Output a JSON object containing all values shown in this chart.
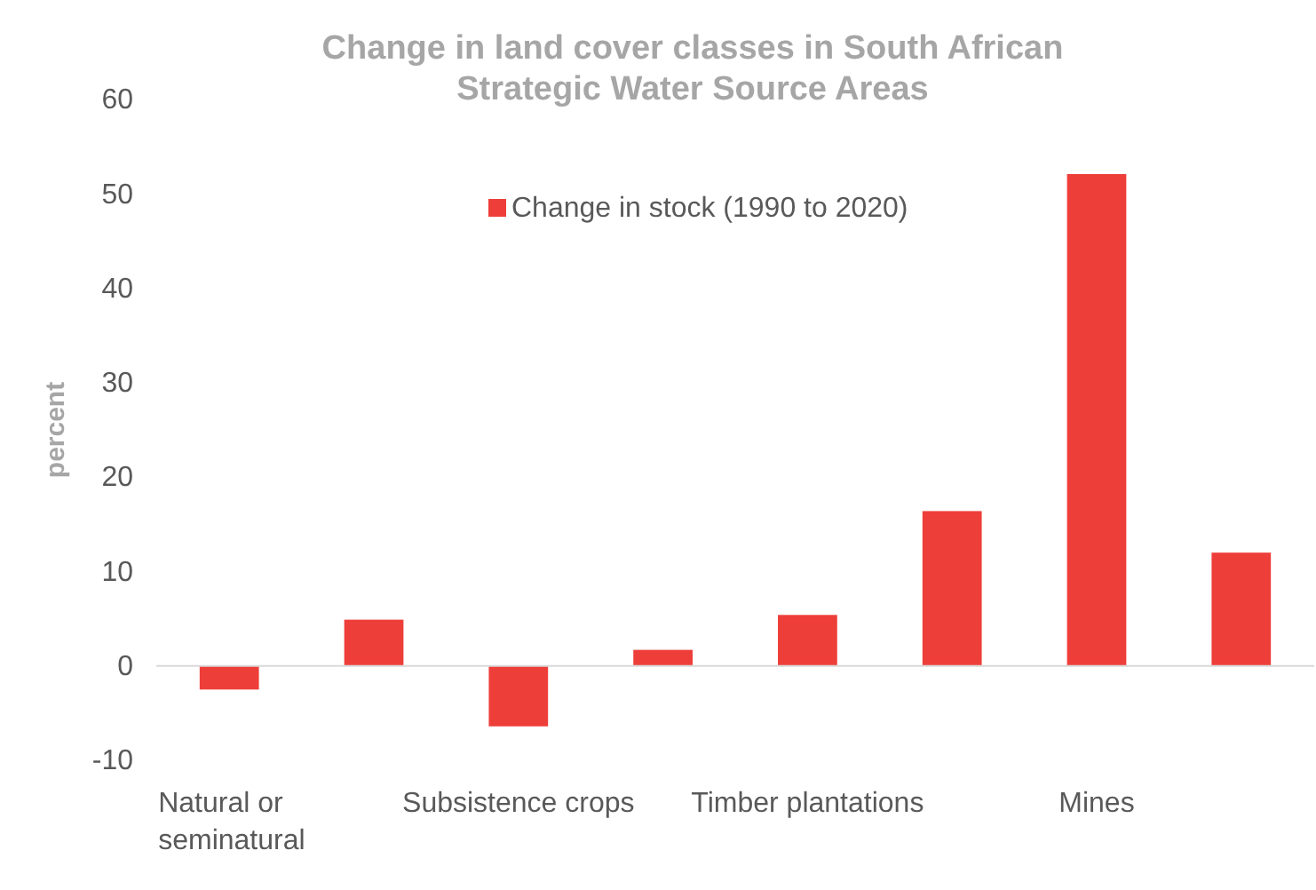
{
  "chart_data": {
    "type": "bar",
    "title": "Change in land cover classes in South African Strategic Water Source Areas",
    "ylabel": "percent",
    "categories": [
      "Natural or seminatural",
      null,
      "Subsistence crops",
      null,
      "Timber plantations",
      null,
      "Mines",
      null
    ],
    "series": [
      {
        "name": "Change in stock (1990 to 2020)",
        "color": "#ee3e3a",
        "values": [
          -2.5,
          4.9,
          -6.4,
          1.7,
          5.4,
          16.4,
          52.1,
          12.0
        ]
      }
    ],
    "ylim": [
      -10,
      60
    ],
    "yticks": [
      -10,
      0,
      10,
      20,
      30,
      40,
      50,
      60
    ],
    "legend": "top"
  }
}
